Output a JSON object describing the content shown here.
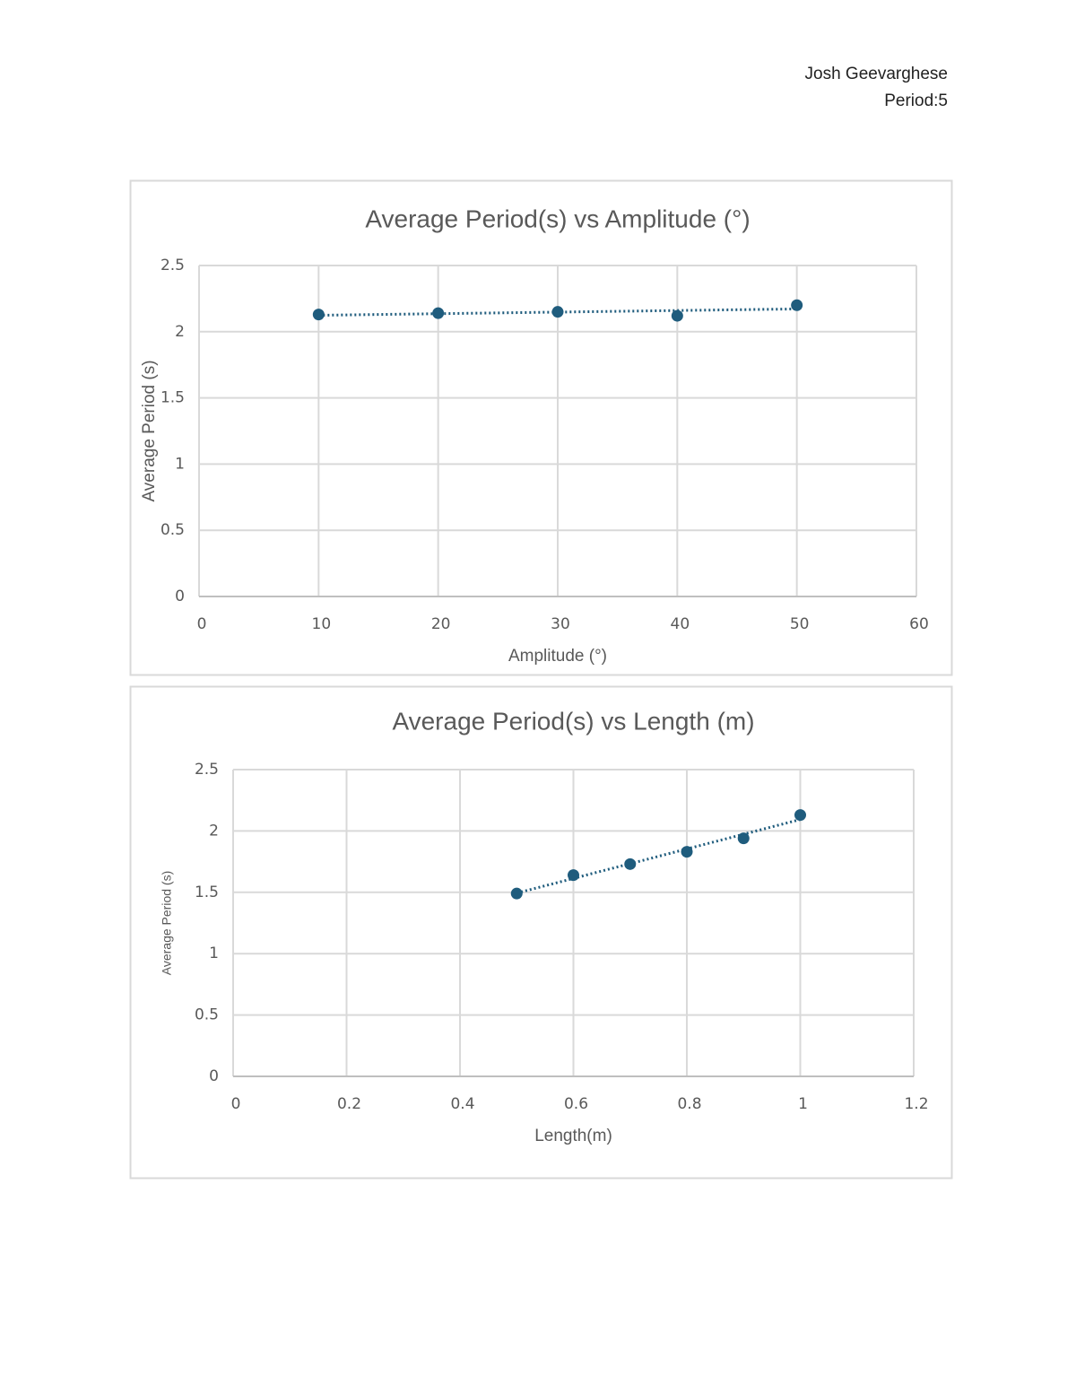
{
  "header": {
    "name": "Josh Geevarghese",
    "period": "Period:5"
  },
  "chart_data": [
    {
      "type": "scatter",
      "title": "Average Period(s) vs Amplitude (°)",
      "x_label": "Amplitude (°)",
      "y_label": "Average Period (s)",
      "series": [
        {
          "name": "Average Period",
          "color": "#1f5c7d",
          "x": [
            10,
            20,
            30,
            40,
            50
          ],
          "values": [
            2.13,
            2.14,
            2.15,
            2.12,
            2.2
          ]
        }
      ],
      "trendline": "linear",
      "xlim": [
        0,
        60
      ],
      "xticks": [
        0,
        10,
        20,
        30,
        40,
        50,
        60
      ],
      "ylim": [
        0,
        2.5
      ],
      "yticks": [
        0,
        0.5,
        1,
        1.5,
        2,
        2.5
      ],
      "grid": true
    },
    {
      "type": "scatter",
      "title": "Average Period(s) vs Length (m)",
      "x_label": "Length(m)",
      "y_label": "Average Period (s)",
      "series": [
        {
          "name": "Average Period",
          "color": "#1f5c7d",
          "x": [
            0.5,
            0.6,
            0.7,
            0.8,
            0.9,
            1
          ],
          "values": [
            1.49,
            1.64,
            1.73,
            1.83,
            1.94,
            2.13
          ]
        }
      ],
      "trendline": "linear",
      "xlim": [
        0,
        1.2
      ],
      "xticks": [
        0,
        0.2,
        0.4,
        0.6,
        0.8,
        1,
        1.2
      ],
      "ylim": [
        0,
        2.5
      ],
      "yticks": [
        0,
        0.5,
        1,
        1.5,
        2,
        2.5
      ],
      "grid": true
    }
  ]
}
